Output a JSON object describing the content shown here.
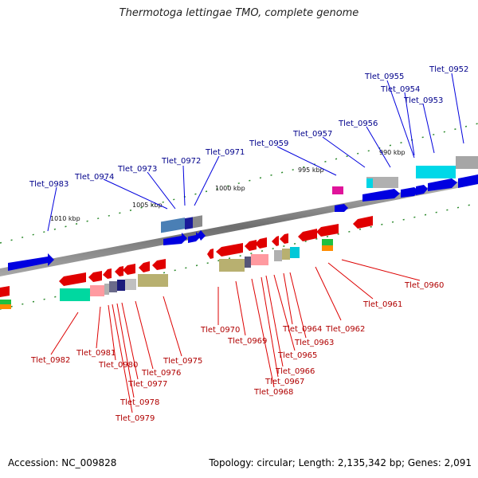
{
  "title": "Thermotoga lettingae TMO, complete genome",
  "footer": {
    "accession": "Accession: NC_009828",
    "stats": "Topology: circular; Length: 2,135,342 bp; Genes: 2,091"
  },
  "scale_labels": [
    "1010 kbp",
    "1005 kbp",
    "1000 kbp",
    "995 kbp",
    "990 kbp"
  ],
  "top_genes": [
    "Tlet_0983",
    "Tlet_0974",
    "Tlet_0973",
    "Tlet_0972",
    "Tlet_0971",
    "Tlet_0959",
    "Tlet_0957",
    "Tlet_0956",
    "Tlet_0955",
    "Tlet_0954",
    "Tlet_0953",
    "Tlet_0952"
  ],
  "bottom_genes": [
    "Tlet_0982",
    "Tlet_0981",
    "Tlet_0980",
    "Tlet_0979",
    "Tlet_0978",
    "Tlet_0977",
    "Tlet_0976",
    "Tlet_0975",
    "Tlet_0970",
    "Tlet_0969",
    "Tlet_0968",
    "Tlet_0967",
    "Tlet_0966",
    "Tlet_0965",
    "Tlet_0964",
    "Tlet_0963",
    "Tlet_0962",
    "Tlet_0961",
    "Tlet_0960"
  ],
  "colors": {
    "forward_strand": "#0000ee",
    "reverse_strand": "#ee0000",
    "backbone": "#888888",
    "tick": "#228b22"
  }
}
